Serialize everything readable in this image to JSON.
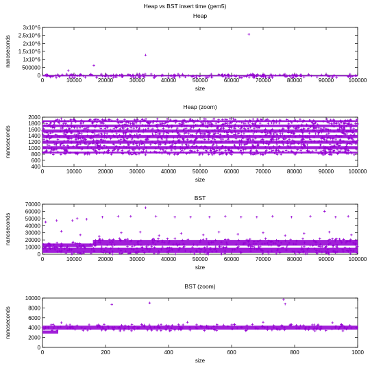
{
  "figure": {
    "title": "Heap vs BST insert time (gem5)"
  },
  "chart_data": [
    {
      "type": "scatter",
      "title": "Heap",
      "xlabel": "size",
      "ylabel": "nanoseconds",
      "xlim": [
        0,
        100000
      ],
      "ylim": [
        0,
        3000000
      ],
      "xticks": [
        "0",
        "10000",
        "20000",
        "30000",
        "40000",
        "50000",
        "60000",
        "70000",
        "80000",
        "90000",
        "100000"
      ],
      "yticks": [
        "0",
        "500000",
        "1x10^6",
        "1.5x10^6",
        "2x10^6",
        "2.5x10^6",
        "3x10^6"
      ],
      "series": [
        {
          "marker_color": "#9400d3",
          "band": {
            "x": [
              0,
              100000
            ],
            "y": [
              0,
              2000
            ]
          },
          "outliers": [
            {
              "x": 8200,
              "y": 300000
            },
            {
              "x": 16300,
              "y": 620000
            },
            {
              "x": 32700,
              "y": 1270000
            },
            {
              "x": 65500,
              "y": 2570000
            }
          ]
        }
      ]
    },
    {
      "type": "scatter",
      "title": "Heap (zoom)",
      "xlabel": "size",
      "ylabel": "nanoseconds",
      "xlim": [
        0,
        100000
      ],
      "ylim": [
        400,
        2000
      ],
      "xticks": [
        "0",
        "10000",
        "20000",
        "30000",
        "40000",
        "50000",
        "60000",
        "70000",
        "80000",
        "90000",
        "100000"
      ],
      "yticks": [
        "400",
        "600",
        "800",
        "1000",
        "1200",
        "1400",
        "1600",
        "1800",
        "2000"
      ],
      "series": [
        {
          "marker_color": "#9400d3",
          "bands": [
            {
              "y": [
                820,
                880
              ]
            },
            {
              "y": [
                960,
                1060
              ]
            },
            {
              "y": [
                1140,
                1240
              ]
            },
            {
              "y": [
                1320,
                1420
              ]
            },
            {
              "y": [
                1500,
                1600
              ]
            },
            {
              "y": [
                1680,
                1760
              ]
            },
            {
              "y": [
                1840,
                1900
              ]
            }
          ]
        }
      ]
    },
    {
      "type": "scatter",
      "title": "BST",
      "xlabel": "size",
      "ylabel": "nanoseconds",
      "xlim": [
        0,
        100000
      ],
      "ylim": [
        0,
        70000
      ],
      "xticks": [
        "0",
        "10000",
        "20000",
        "30000",
        "40000",
        "50000",
        "60000",
        "70000",
        "80000",
        "90000",
        "100000"
      ],
      "yticks": [
        "0",
        "10000",
        "20000",
        "30000",
        "40000",
        "50000",
        "60000",
        "70000"
      ],
      "series": [
        {
          "marker_color": "#9400d3",
          "bands": [
            {
              "x": [
                0,
                100000
              ],
              "y": [
                2000,
                9000
              ]
            },
            {
              "x": [
                0,
                16000
              ],
              "y": [
                10000,
                15000
              ]
            },
            {
              "x": [
                16000,
                100000
              ],
              "y": [
                12000,
                20000
              ]
            }
          ],
          "scattered_points": [
            {
              "x": 1000,
              "y": 45000
            },
            {
              "x": 4500,
              "y": 47000
            },
            {
              "x": 9500,
              "y": 47000
            },
            {
              "x": 11000,
              "y": 50000
            },
            {
              "x": 14000,
              "y": 49000
            },
            {
              "x": 19000,
              "y": 52000
            },
            {
              "x": 24000,
              "y": 53000
            },
            {
              "x": 28000,
              "y": 53000
            },
            {
              "x": 32700,
              "y": 65000
            },
            {
              "x": 36000,
              "y": 53000
            },
            {
              "x": 42000,
              "y": 52000
            },
            {
              "x": 47000,
              "y": 52000
            },
            {
              "x": 53000,
              "y": 52000
            },
            {
              "x": 58000,
              "y": 53000
            },
            {
              "x": 63000,
              "y": 52000
            },
            {
              "x": 68000,
              "y": 52000
            },
            {
              "x": 73000,
              "y": 53000
            },
            {
              "x": 79000,
              "y": 52000
            },
            {
              "x": 85000,
              "y": 53000
            },
            {
              "x": 89500,
              "y": 60000
            },
            {
              "x": 93000,
              "y": 52000
            },
            {
              "x": 97000,
              "y": 53000
            },
            {
              "x": 6000,
              "y": 32000
            },
            {
              "x": 12000,
              "y": 27000
            },
            {
              "x": 18000,
              "y": 25000
            },
            {
              "x": 25000,
              "y": 30000
            },
            {
              "x": 31000,
              "y": 31000
            },
            {
              "x": 37000,
              "y": 26000
            },
            {
              "x": 44000,
              "y": 29000
            },
            {
              "x": 51000,
              "y": 27000
            },
            {
              "x": 56000,
              "y": 31000
            },
            {
              "x": 62000,
              "y": 28000
            },
            {
              "x": 70000,
              "y": 30000
            },
            {
              "x": 77000,
              "y": 26000
            },
            {
              "x": 83000,
              "y": 29000
            },
            {
              "x": 91000,
              "y": 31000
            },
            {
              "x": 98000,
              "y": 27000
            }
          ]
        }
      ]
    },
    {
      "type": "scatter",
      "title": "BST (zoom)",
      "xlabel": "size",
      "ylabel": "nanoseconds",
      "xlim": [
        0,
        1000
      ],
      "ylim": [
        0,
        10000
      ],
      "xticks": [
        "0",
        "200",
        "400",
        "600",
        "800",
        "1000"
      ],
      "yticks": [
        "0",
        "2000",
        "4000",
        "6000",
        "8000",
        "10000"
      ],
      "series": [
        {
          "marker_color": "#9400d3",
          "band": {
            "x": [
              0,
              1000
            ],
            "y_start": [
              2800,
              3400
            ],
            "y": [
              3600,
              4400
            ]
          },
          "outliers": [
            {
              "x": 220,
              "y": 8700
            },
            {
              "x": 340,
              "y": 9000
            },
            {
              "x": 765,
              "y": 9700
            },
            {
              "x": 770,
              "y": 8800
            },
            {
              "x": 60,
              "y": 5000
            },
            {
              "x": 460,
              "y": 5100
            },
            {
              "x": 700,
              "y": 5100
            },
            {
              "x": 920,
              "y": 5000
            }
          ]
        }
      ]
    }
  ]
}
